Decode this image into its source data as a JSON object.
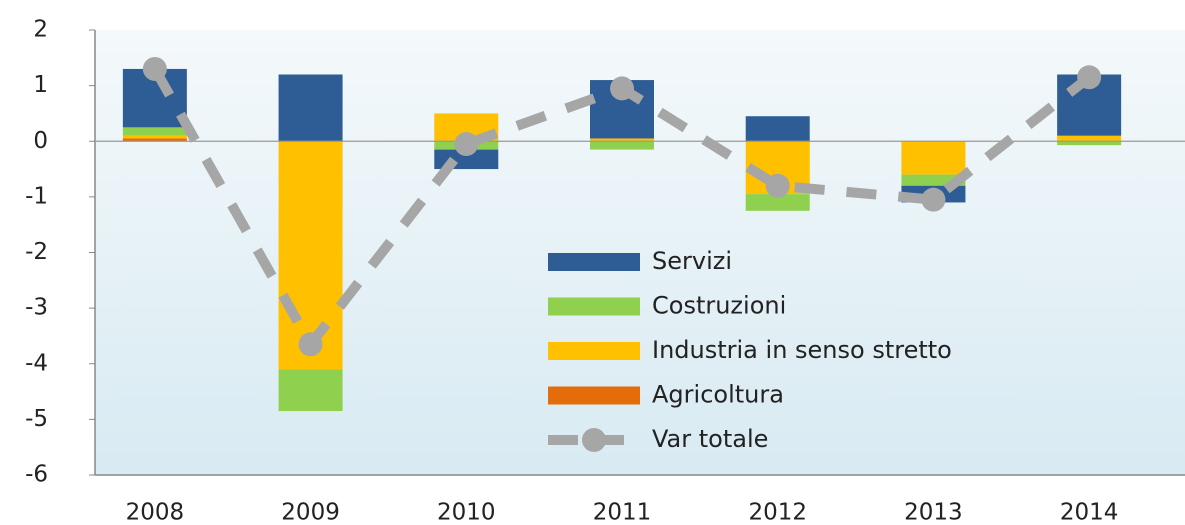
{
  "chart_data": {
    "type": "bar",
    "categories": [
      "2008",
      "2009",
      "2010",
      "2011",
      "2012",
      "2013",
      "2014"
    ],
    "series": [
      {
        "name": "Servizi",
        "color": "#2e5c94",
        "values": [
          1.05,
          1.2,
          -0.35,
          1.05,
          0.45,
          -0.3,
          1.1
        ]
      },
      {
        "name": "Costruzioni",
        "color": "#8fd14f",
        "values": [
          0.15,
          -0.75,
          -0.15,
          -0.15,
          -0.3,
          -0.2,
          -0.07
        ]
      },
      {
        "name": "Industria in senso stretto",
        "color": "#ffc000",
        "values": [
          0.05,
          -4.1,
          0.5,
          0.05,
          -0.95,
          -0.6,
          0.1
        ]
      },
      {
        "name": "Agricoltura",
        "color": "#e46c0a",
        "values": [
          0.05,
          0,
          0,
          0,
          0,
          0,
          0
        ]
      },
      {
        "name": "Var totale",
        "color": "#a6a6a6",
        "type": "line",
        "values": [
          1.3,
          -3.65,
          -0.05,
          0.95,
          -0.8,
          -1.05,
          1.15
        ]
      }
    ],
    "ylim": [
      -6,
      2
    ],
    "yticks": [
      -6,
      -5,
      -4,
      -3,
      -2,
      -1,
      0,
      1,
      2
    ]
  }
}
